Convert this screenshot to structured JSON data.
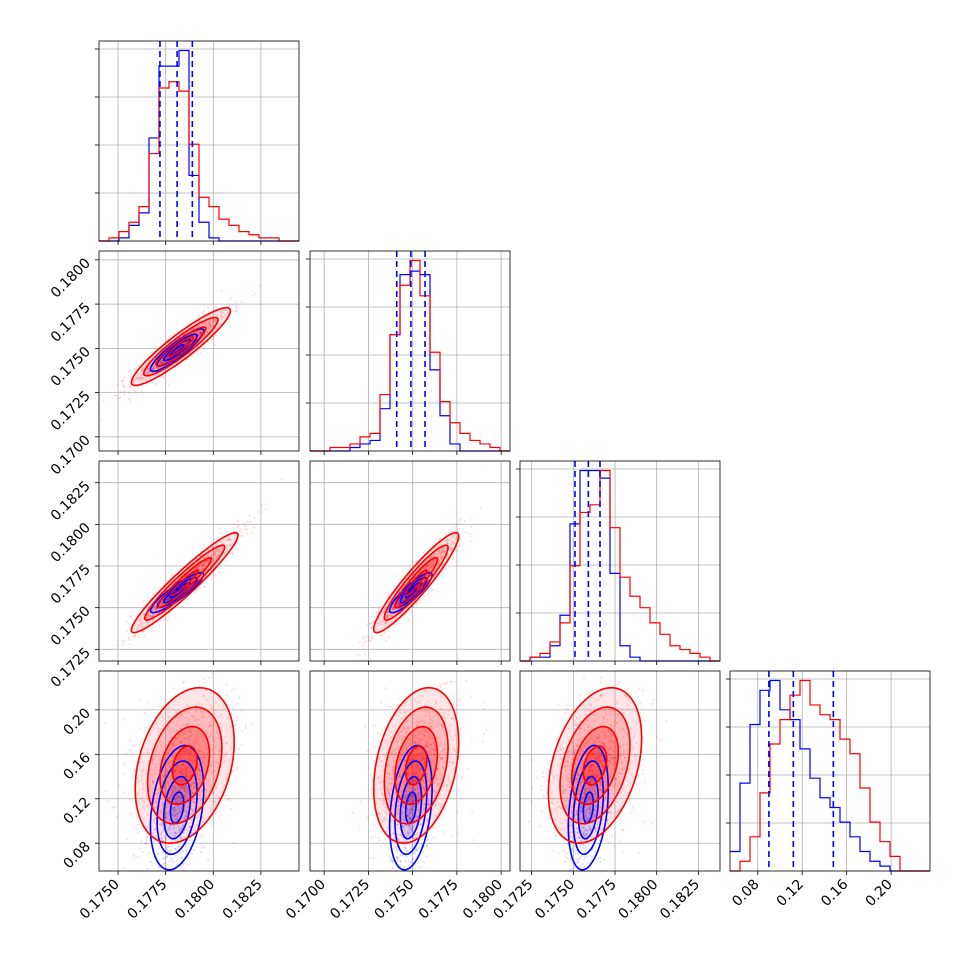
{
  "chart_data": {
    "type": "corner",
    "grid": true,
    "series": [
      {
        "color": "#0000ff"
      },
      {
        "color": "#ff0000"
      }
    ],
    "quantile_line_color": "#0000ff",
    "params": [
      {
        "lim": [
          0.174,
          0.1845
        ],
        "ticks": [
          "0.1750",
          "0.1775",
          "0.1800",
          "0.1825"
        ],
        "quantiles": [
          0.1772,
          0.1781,
          0.1789
        ]
      },
      {
        "lim": [
          0.1692,
          0.1805
        ],
        "ticks": [
          "0.1700",
          "0.1725",
          "0.1750",
          "0.1775",
          "0.1800"
        ],
        "quantiles": [
          0.1741,
          0.1749,
          0.1757
        ]
      },
      {
        "lim": [
          0.1718,
          0.1838
        ],
        "ticks": [
          "0.1725",
          "0.1750",
          "0.1775",
          "0.1800",
          "0.1825"
        ],
        "quantiles": [
          0.1751,
          0.1759,
          0.1766
        ]
      },
      {
        "lim": [
          0.055,
          0.235
        ],
        "ticks": [
          "0.08",
          "0.12",
          "0.16",
          "0.20"
        ],
        "quantiles": [
          0.09,
          0.112,
          0.148
        ]
      }
    ],
    "histograms": [
      {
        "edges_range": [
          0.174,
          0.1845
        ],
        "nbins": 20,
        "blue": [
          0,
          0,
          1,
          5,
          9,
          33,
          56,
          56,
          61,
          21,
          6,
          1,
          0,
          0,
          0,
          0,
          0,
          0,
          0,
          0
        ],
        "red": [
          0,
          1,
          3,
          6,
          11,
          28,
          49,
          51,
          48,
          31,
          14,
          11,
          7,
          5,
          3,
          2,
          1,
          1,
          0,
          0
        ]
      },
      {
        "edges_range": [
          0.1692,
          0.1805
        ],
        "nbins": 20,
        "blue": [
          0,
          0,
          0,
          0,
          1,
          2,
          3,
          12,
          33,
          50,
          51,
          50,
          23,
          10,
          2,
          0,
          0,
          0,
          0,
          0
        ],
        "red": [
          0,
          0,
          1,
          1,
          2,
          4,
          5,
          16,
          33,
          47,
          54,
          44,
          28,
          14,
          8,
          5,
          3,
          2,
          1,
          0
        ]
      },
      {
        "edges_range": [
          0.1718,
          0.1838
        ],
        "nbins": 20,
        "blue": [
          0,
          1,
          1,
          4,
          12,
          36,
          50,
          50,
          48,
          23,
          4,
          1,
          0,
          0,
          0,
          0,
          0,
          0,
          0,
          0
        ],
        "red": [
          0,
          1,
          2,
          5,
          10,
          25,
          39,
          41,
          50,
          35,
          22,
          17,
          14,
          10,
          7,
          4,
          3,
          2,
          1,
          0
        ]
      },
      {
        "edges_range": [
          0.055,
          0.235
        ],
        "nbins": 20,
        "blue": [
          4,
          18,
          30,
          37,
          39,
          33,
          31,
          25,
          19,
          15,
          13,
          10,
          7,
          4,
          2,
          1,
          0,
          0,
          0,
          0
        ],
        "red": [
          0,
          2,
          7,
          16,
          26,
          31,
          36,
          39,
          34,
          32,
          31,
          27,
          24,
          17,
          10,
          6,
          3,
          0,
          0,
          0
        ]
      }
    ],
    "scatter_panels": [
      {
        "row": 1,
        "col": 0,
        "blue": {
          "center": [
            0.1781,
            0.1749
          ],
          "sd": [
            0.0007,
            0.0006
          ],
          "rho": 0.9
        },
        "red": {
          "center": [
            0.1783,
            0.1751
          ],
          "sd": [
            0.0013,
            0.0011
          ],
          "rho": 0.92
        }
      },
      {
        "row": 2,
        "col": 0,
        "blue": {
          "center": [
            0.1781,
            0.1759
          ],
          "sd": [
            0.0007,
            0.0006
          ],
          "rho": 0.9
        },
        "red": {
          "center": [
            0.1785,
            0.1765
          ],
          "sd": [
            0.0014,
            0.0015
          ],
          "rho": 0.95
        }
      },
      {
        "row": 2,
        "col": 1,
        "blue": {
          "center": [
            0.1749,
            0.1759
          ],
          "sd": [
            0.0006,
            0.0006
          ],
          "rho": 0.88
        },
        "red": {
          "center": [
            0.1752,
            0.1765
          ],
          "sd": [
            0.0012,
            0.0015
          ],
          "rho": 0.93
        }
      },
      {
        "row": 3,
        "col": 0,
        "blue": {
          "center": [
            0.1781,
            0.112
          ],
          "sd": [
            0.0007,
            0.028
          ],
          "rho": 0.3
        },
        "red": {
          "center": [
            0.1785,
            0.15
          ],
          "sd": [
            0.0013,
            0.035
          ],
          "rho": 0.3
        }
      },
      {
        "row": 3,
        "col": 1,
        "blue": {
          "center": [
            0.1749,
            0.112
          ],
          "sd": [
            0.0006,
            0.028
          ],
          "rho": 0.3
        },
        "red": {
          "center": [
            0.1752,
            0.15
          ],
          "sd": [
            0.0012,
            0.035
          ],
          "rho": 0.3
        }
      },
      {
        "row": 3,
        "col": 2,
        "blue": {
          "center": [
            0.1759,
            0.112
          ],
          "sd": [
            0.0006,
            0.028
          ],
          "rho": 0.3
        },
        "red": {
          "center": [
            0.1763,
            0.15
          ],
          "sd": [
            0.0014,
            0.035
          ],
          "rho": 0.35
        }
      }
    ]
  }
}
